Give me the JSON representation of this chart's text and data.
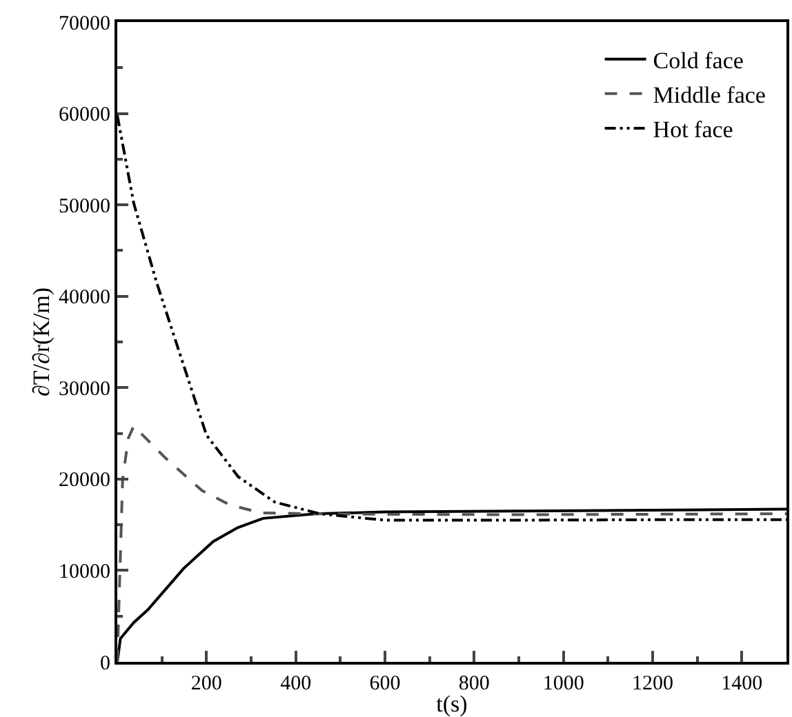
{
  "chart_data": {
    "type": "line",
    "xlabel": "t(s)",
    "ylabel": "∂T/∂r(K/m)",
    "xlim": [
      0,
      1500
    ],
    "xticks": [
      200,
      400,
      600,
      800,
      1000,
      1200,
      1400
    ],
    "ylim": [
      0,
      70000
    ],
    "yticks": [
      0,
      10000,
      20000,
      30000,
      40000,
      50000,
      60000,
      70000
    ],
    "grid": false,
    "legend": "top right",
    "series": [
      {
        "name": "Cold face",
        "color": "#000000",
        "line_style": "solid",
        "x": [
          0,
          7,
          37,
          68,
          149,
          215,
          270,
          327,
          444,
          600,
          900,
          1200,
          1500
        ],
        "values": [
          0,
          2540,
          4300,
          5670,
          10230,
          13170,
          14690,
          15700,
          16200,
          16400,
          16500,
          16600,
          16700
        ]
      },
      {
        "name": "Middle face",
        "color": "#555555",
        "line_style": "dashed",
        "x": [
          0,
          3,
          12,
          25,
          37,
          108,
          190,
          251,
          322,
          444,
          600,
          900,
          1500
        ],
        "values": [
          0,
          5000,
          20000,
          24500,
          25800,
          22300,
          18740,
          17200,
          16300,
          16200,
          16150,
          16100,
          16200
        ]
      },
      {
        "name": "Hot face",
        "color": "#000000",
        "line_style": "dashdot",
        "x": [
          0,
          37,
          88,
          149,
          200,
          271,
          353,
          454,
          600,
          900,
          1200,
          1500
        ],
        "values": [
          59800,
          50150,
          41540,
          32400,
          24800,
          20260,
          17480,
          16200,
          15500,
          15500,
          15550,
          15550
        ]
      }
    ]
  }
}
